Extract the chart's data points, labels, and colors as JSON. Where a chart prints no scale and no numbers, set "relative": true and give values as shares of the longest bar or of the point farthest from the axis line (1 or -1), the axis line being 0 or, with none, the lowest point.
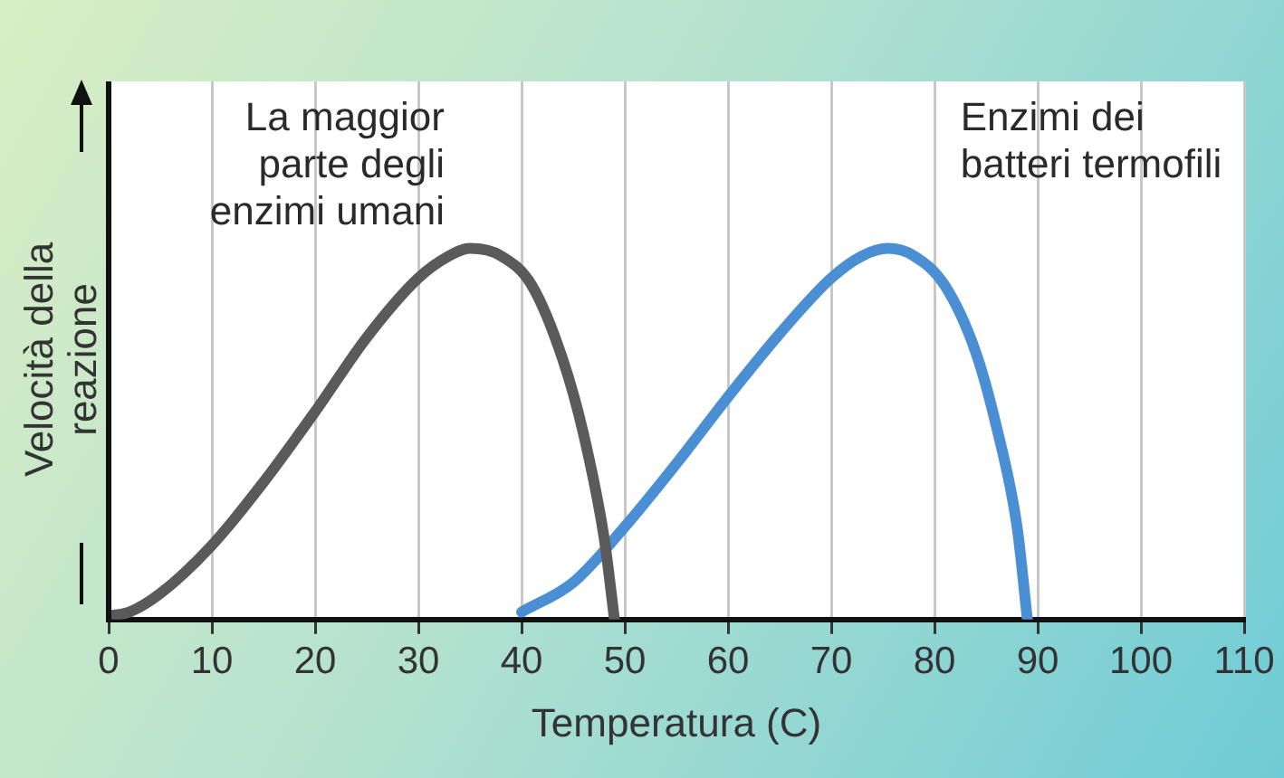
{
  "chart_data": {
    "type": "line",
    "xlabel": "Temperatura (C)",
    "ylabel": "Velocità della reazione",
    "relative": true,
    "xlim": [
      0,
      110
    ],
    "xticks": [
      0,
      10,
      20,
      30,
      40,
      50,
      60,
      70,
      80,
      90,
      100,
      110
    ],
    "grid": "x",
    "legend": false,
    "marker": "none",
    "line_style": "solid",
    "series": [
      {
        "name": "La maggior parte degli enzimi umani",
        "color": "#5a5a5a",
        "x": [
          0,
          2,
          5,
          10,
          15,
          20,
          25,
          30,
          33,
          35,
          38,
          41,
          44,
          46,
          48,
          49
        ],
        "values": [
          0.01,
          0.02,
          0.07,
          0.2,
          0.37,
          0.56,
          0.76,
          0.92,
          0.98,
          1.0,
          0.98,
          0.9,
          0.7,
          0.5,
          0.22,
          0
        ]
      },
      {
        "name": "Enzimi dei batteri termofili",
        "color": "#4a8fd4",
        "x": [
          40,
          45,
          50,
          55,
          60,
          65,
          70,
          73,
          75.5,
          78,
          81,
          84,
          86,
          88,
          89
        ],
        "values": [
          0.02,
          0.1,
          0.25,
          0.42,
          0.6,
          0.77,
          0.92,
          0.98,
          1.0,
          0.98,
          0.9,
          0.72,
          0.52,
          0.25,
          0
        ]
      }
    ]
  }
}
